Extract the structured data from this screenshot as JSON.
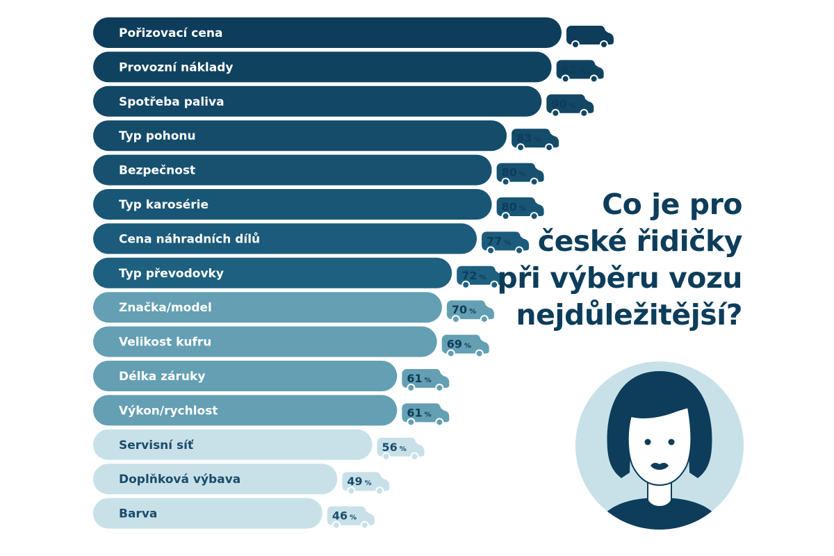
{
  "headline": {
    "lines": [
      "Co je pro",
      "české řidičky",
      "při výběru vozu",
      "nejdůležitější?"
    ]
  },
  "colors": {
    "dark": "#0d3d5a",
    "medium": "#649fb3",
    "light": "#c8e1e9",
    "medium_text": "#ffffff",
    "light_text": "#1a4c6b",
    "face": "#ffffff",
    "portrait_bg": "#c8e1e9"
  },
  "chart_data": {
    "type": "bar",
    "orientation": "horizontal",
    "title": "Co je pro české řidičky při výběru vozu nejdůležitější?",
    "unit": "%",
    "xlim": [
      0,
      100
    ],
    "categories": [
      "Pořizovací cena",
      "Provozní náklady",
      "Spotřeba paliva",
      "Typ pohonu",
      "Bezpečnost",
      "Typ karosérie",
      "Cena náhradních dílů",
      "Typ převodovky",
      "Značka/model",
      "Velikost kufru",
      "Délka záruky",
      "Výkon/rychlost",
      "Servisní síť",
      "Doplňková výbava",
      "Barva"
    ],
    "values": [
      94,
      92,
      90,
      83,
      80,
      80,
      77,
      72,
      70,
      69,
      61,
      61,
      56,
      49,
      46
    ],
    "tiers": [
      "dark",
      "dark",
      "dark",
      "dark",
      "dark",
      "dark",
      "dark",
      "dark",
      "medium",
      "medium",
      "medium",
      "medium",
      "light",
      "light",
      "light"
    ]
  }
}
